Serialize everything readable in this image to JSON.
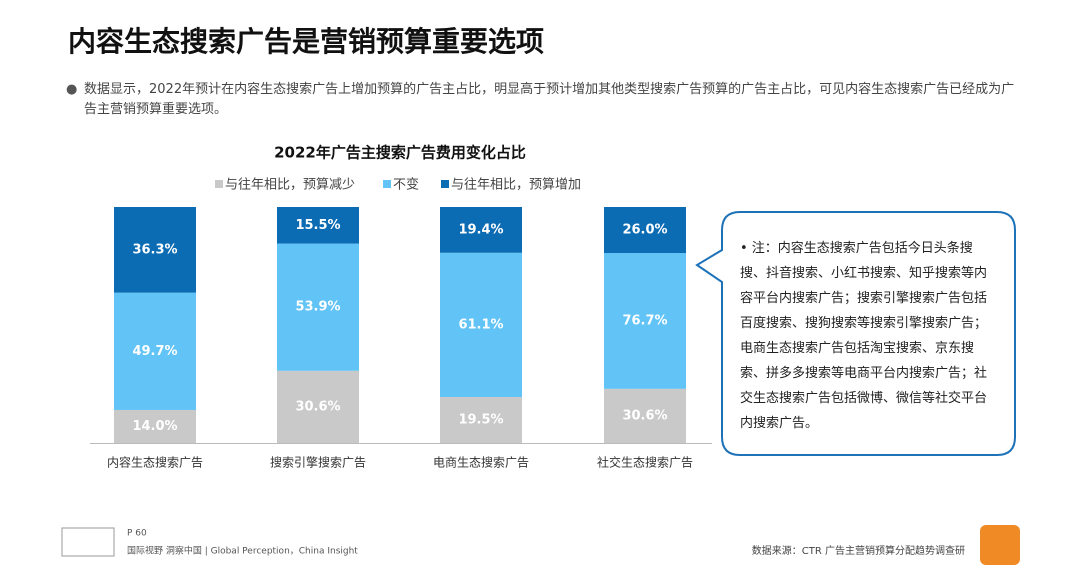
{
  "header": {
    "title": "内容生态搜索广告是营销预算重要选项",
    "bullet": "数据显示，2022年预计在内容生态搜索广告上增加预算的广告主占比，明显高于预计增加其他类型搜索广告预算的广告主占比，可见内容生态搜索广告已经成为广告主营销预算重要选项。"
  },
  "chart_data": {
    "type": "bar",
    "stacked": true,
    "title": "2022年广告主搜索广告费用变化占比",
    "categories": [
      "内容生态搜索广告",
      "搜索引擎搜索广告",
      "电商生态搜索广告",
      "社交生态搜索广告"
    ],
    "series": [
      {
        "name": "与往年相比，预算减少",
        "color": "#c9c9c9",
        "values": [
          14.0,
          30.6,
          19.5,
          30.6
        ],
        "value_labels": [
          "14.0%",
          "30.6%",
          "19.5%",
          "30.6%"
        ]
      },
      {
        "name": "不变",
        "color": "#62c3f6",
        "values": [
          49.7,
          53.9,
          61.1,
          76.7
        ],
        "value_labels": [
          "49.7%",
          "53.9%",
          "61.1%",
          "76.7%"
        ]
      },
      {
        "name": "与往年相比，预算增加",
        "color": "#0b6cb4",
        "values": [
          36.3,
          15.5,
          19.4,
          26.0
        ],
        "value_labels": [
          "36.3%",
          "15.5%",
          "19.4%",
          "26.0%"
        ]
      }
    ]
  },
  "note": "• 注：内容生态搜索广告包括今日头条搜搜、抖音搜索、小红书搜索、知乎搜索等内容平台内搜索广告；搜索引擎搜索广告包括百度搜索、搜狗搜索等搜索引擎搜索广告；电商生态搜索广告包括淘宝搜索、京东搜索、拼多多搜索等电商平台内搜索广告；社交生态搜索广告包括微博、微信等社交平台内搜索广告。",
  "footer": {
    "page": "P 60",
    "slogan": "国际视野 洞察中国 | Global Perception，China Insight",
    "source": "数据来源：CTR 广告主营销预算分配趋势调查研"
  }
}
